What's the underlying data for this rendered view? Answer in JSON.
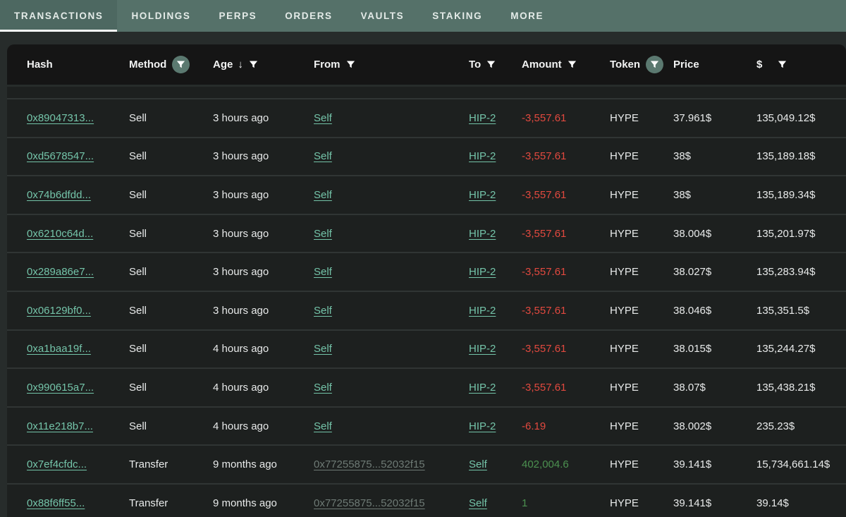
{
  "nav": {
    "tabs": [
      {
        "label": "TRANSACTIONS",
        "active": true
      },
      {
        "label": "HOLDINGS",
        "active": false
      },
      {
        "label": "PERPS",
        "active": false
      },
      {
        "label": "ORDERS",
        "active": false
      },
      {
        "label": "VAULTS",
        "active": false
      },
      {
        "label": "STAKING",
        "active": false
      },
      {
        "label": "MORE",
        "active": false
      }
    ]
  },
  "table": {
    "columns": [
      {
        "key": "hash",
        "label": "Hash",
        "filter": "none"
      },
      {
        "key": "method",
        "label": "Method",
        "filter": "active"
      },
      {
        "key": "age",
        "label": "Age",
        "filter": "plain",
        "sort": "desc"
      },
      {
        "key": "from",
        "label": "From",
        "filter": "plain"
      },
      {
        "key": "to",
        "label": "To",
        "filter": "plain"
      },
      {
        "key": "amount",
        "label": "Amount",
        "filter": "plain"
      },
      {
        "key": "token",
        "label": "Token",
        "filter": "active"
      },
      {
        "key": "price",
        "label": "Price",
        "filter": "none"
      },
      {
        "key": "usd",
        "label": "$",
        "filter": "plain",
        "filter_gap": true
      }
    ],
    "rows": [
      {
        "hash": "0x89047313...",
        "method": "Sell",
        "age": "3 hours ago",
        "from": "Self",
        "from_type": "self",
        "to": "HIP-2",
        "to_type": "link",
        "amount": "-3,557.61",
        "amount_sign": "neg",
        "token": "HYPE",
        "price": "37.961$",
        "usd": "135,049.12$"
      },
      {
        "hash": "0xd5678547...",
        "method": "Sell",
        "age": "3 hours ago",
        "from": "Self",
        "from_type": "self",
        "to": "HIP-2",
        "to_type": "link",
        "amount": "-3,557.61",
        "amount_sign": "neg",
        "token": "HYPE",
        "price": "38$",
        "usd": "135,189.18$"
      },
      {
        "hash": "0x74b6dfdd...",
        "method": "Sell",
        "age": "3 hours ago",
        "from": "Self",
        "from_type": "self",
        "to": "HIP-2",
        "to_type": "link",
        "amount": "-3,557.61",
        "amount_sign": "neg",
        "token": "HYPE",
        "price": "38$",
        "usd": "135,189.34$"
      },
      {
        "hash": "0x6210c64d...",
        "method": "Sell",
        "age": "3 hours ago",
        "from": "Self",
        "from_type": "self",
        "to": "HIP-2",
        "to_type": "link",
        "amount": "-3,557.61",
        "amount_sign": "neg",
        "token": "HYPE",
        "price": "38.004$",
        "usd": "135,201.97$"
      },
      {
        "hash": "0x289a86e7...",
        "method": "Sell",
        "age": "3 hours ago",
        "from": "Self",
        "from_type": "self",
        "to": "HIP-2",
        "to_type": "link",
        "amount": "-3,557.61",
        "amount_sign": "neg",
        "token": "HYPE",
        "price": "38.027$",
        "usd": "135,283.94$"
      },
      {
        "hash": "0x06129bf0...",
        "method": "Sell",
        "age": "3 hours ago",
        "from": "Self",
        "from_type": "self",
        "to": "HIP-2",
        "to_type": "link",
        "amount": "-3,557.61",
        "amount_sign": "neg",
        "token": "HYPE",
        "price": "38.046$",
        "usd": "135,351.5$"
      },
      {
        "hash": "0xa1baa19f...",
        "method": "Sell",
        "age": "4 hours ago",
        "from": "Self",
        "from_type": "self",
        "to": "HIP-2",
        "to_type": "link",
        "amount": "-3,557.61",
        "amount_sign": "neg",
        "token": "HYPE",
        "price": "38.015$",
        "usd": "135,244.27$"
      },
      {
        "hash": "0x990615a7...",
        "method": "Sell",
        "age": "4 hours ago",
        "from": "Self",
        "from_type": "self",
        "to": "HIP-2",
        "to_type": "link",
        "amount": "-3,557.61",
        "amount_sign": "neg",
        "token": "HYPE",
        "price": "38.07$",
        "usd": "135,438.21$"
      },
      {
        "hash": "0x11e218b7...",
        "method": "Sell",
        "age": "4 hours ago",
        "from": "Self",
        "from_type": "self",
        "to": "HIP-2",
        "to_type": "link",
        "amount": "-6.19",
        "amount_sign": "neg",
        "token": "HYPE",
        "price": "38.002$",
        "usd": "235.23$"
      },
      {
        "hash": "0x7ef4cfdc...",
        "method": "Transfer",
        "age": "9 months ago",
        "from": "0x77255875...52032f15",
        "from_type": "address",
        "to": "Self",
        "to_type": "self",
        "amount": "402,004.6",
        "amount_sign": "pos",
        "token": "HYPE",
        "price": "39.141$",
        "usd": "15,734,661.14$"
      },
      {
        "hash": "0x88f6ff55...",
        "method": "Transfer",
        "age": "9 months ago",
        "from": "0x77255875...52032f15",
        "from_type": "address",
        "to": "Self",
        "to_type": "self",
        "amount": "1",
        "amount_sign": "pos",
        "token": "HYPE",
        "price": "39.141$",
        "usd": "39.14$"
      }
    ]
  },
  "icons": {
    "filter": "funnel-icon",
    "sort_desc": "↓"
  },
  "colors": {
    "nav_bg": "#557169",
    "nav_active_bg": "#4d6861",
    "nav_underline": "#f5f8f7",
    "page_bg": "#272c2b",
    "header_bg": "#151515",
    "row_bg": "#1d201f",
    "row_separator": "#303534",
    "link_teal": "#74c4a9",
    "link_gray": "#6e7a75",
    "amount_negative": "#e2493f",
    "amount_positive": "#4c9150",
    "text": "#e8eaea"
  }
}
